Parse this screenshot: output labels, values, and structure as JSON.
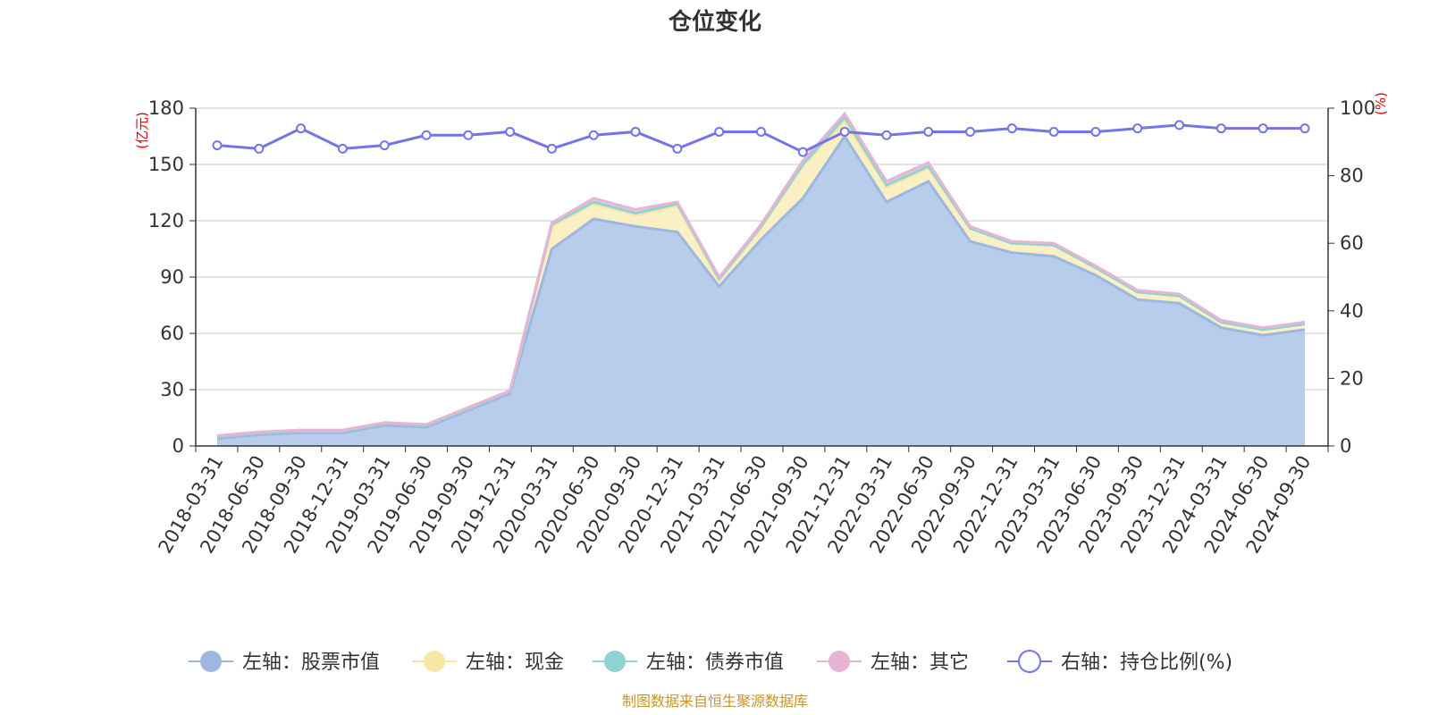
{
  "chart_data": {
    "type": "area",
    "title": "仓位变化",
    "left_axis": {
      "unit": "(亿元)",
      "ylim": [
        0,
        180
      ],
      "ticks": [
        0,
        30,
        60,
        90,
        120,
        150,
        180
      ]
    },
    "right_axis": {
      "unit": "(%)",
      "ylim": [
        0,
        100
      ],
      "ticks": [
        0,
        20,
        40,
        60,
        80,
        100
      ]
    },
    "x": [
      "2018-03-31",
      "2018-06-30",
      "2018-09-30",
      "2018-12-31",
      "2019-03-31",
      "2019-06-30",
      "2019-09-30",
      "2019-12-31",
      "2020-03-31",
      "2020-06-30",
      "2020-09-30",
      "2020-12-31",
      "2021-03-31",
      "2021-06-30",
      "2021-09-30",
      "2021-12-31",
      "2022-03-31",
      "2022-06-30",
      "2022-09-30",
      "2022-12-31",
      "2023-03-31",
      "2023-06-30",
      "2023-09-30",
      "2023-12-31",
      "2024-03-31",
      "2024-06-30",
      "2024-09-30"
    ],
    "series": [
      {
        "name": "左轴：股票市值",
        "axis": "left",
        "color": "#9db7e0",
        "fill": "#b8cceb",
        "values": [
          4,
          6,
          7,
          7,
          11,
          10,
          19,
          28,
          105,
          121,
          117,
          114,
          85,
          110,
          132,
          165,
          130,
          141,
          109,
          103,
          101,
          91,
          78,
          76,
          63,
          59,
          62
        ]
      },
      {
        "name": "左轴：现金",
        "axis": "left",
        "color": "#f7e7a6",
        "fill": "#fbf0c3",
        "values": [
          1,
          1,
          1,
          1,
          1,
          1,
          1,
          1,
          12,
          8,
          6,
          14,
          3,
          6,
          17,
          8,
          8,
          7,
          7,
          5,
          6,
          4,
          4,
          4,
          3,
          3,
          3
        ]
      },
      {
        "name": "左轴：债券市值",
        "axis": "left",
        "color": "#8fd3d3",
        "fill": "#a8dede",
        "values": [
          0,
          0,
          0,
          0,
          0,
          0,
          0,
          0,
          1,
          1,
          1,
          1,
          1,
          1,
          1,
          2,
          1,
          1,
          0,
          0,
          0,
          0,
          0,
          0,
          0,
          0,
          0
        ]
      },
      {
        "name": "左轴：其它",
        "axis": "left",
        "color": "#e8b4d6",
        "fill": "#f0c8e2",
        "values": [
          0.5,
          0.5,
          0.5,
          0.5,
          0.5,
          0.5,
          0.5,
          0.5,
          1,
          2,
          2,
          1,
          1,
          1,
          2,
          2,
          2,
          2,
          1,
          1,
          1,
          1,
          1,
          1,
          1,
          1,
          1
        ]
      },
      {
        "name": "右轴：持仓比例(%)",
        "axis": "right",
        "color": "#7474e8",
        "values": [
          89,
          88,
          94,
          88,
          89,
          92,
          92,
          93,
          88,
          92,
          93,
          88,
          93,
          93,
          87,
          93,
          92,
          93,
          93,
          94,
          93,
          93,
          94,
          95,
          94,
          94,
          94
        ]
      }
    ],
    "grid": true,
    "legend": "bottom"
  },
  "footer": {
    "source": "制图数据来自恒生聚源数据库"
  }
}
